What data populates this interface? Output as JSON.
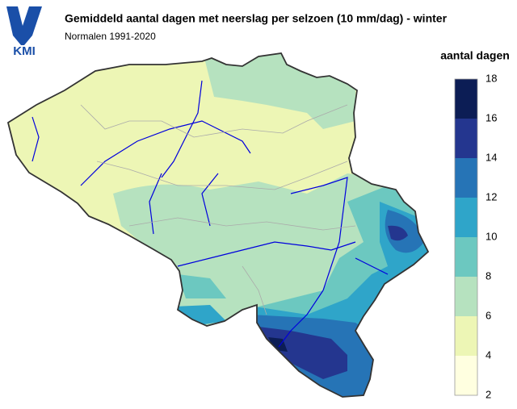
{
  "logo": {
    "text": "KMI"
  },
  "header": {
    "title": "Gemiddeld aantal dagen met neerslag per selzoen (10 mm/dag) - winter",
    "subtitle": "Normalen 1991-2020"
  },
  "legend": {
    "title": "aantal dagen",
    "ticks": [
      2,
      4,
      6,
      8,
      10,
      12,
      14,
      16,
      18
    ],
    "colors": [
      "#ffffe0",
      "#edf6b5",
      "#b6e2bf",
      "#6cc8c0",
      "#2fa5c9",
      "#2674b6",
      "#24368f",
      "#0c1d55"
    ]
  }
}
